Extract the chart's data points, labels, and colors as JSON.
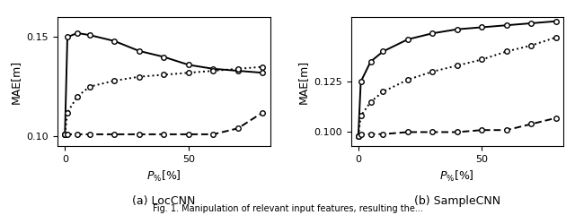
{
  "left": {
    "title": "(a) LocCNN",
    "ylabel": "MAE[m]",
    "xlabel": "$P_{\\%}$[%]",
    "xlim": [
      -3,
      83
    ],
    "ylim": [
      0.095,
      0.16
    ],
    "yticks": [
      0.1,
      0.15
    ],
    "ytick_labels": [
      "0.10",
      "0.15"
    ],
    "xticks": [
      0,
      50
    ],
    "x": [
      0,
      1,
      5,
      10,
      20,
      30,
      40,
      50,
      60,
      70,
      80
    ],
    "solid": [
      0.101,
      0.15,
      0.152,
      0.151,
      0.148,
      0.143,
      0.14,
      0.136,
      0.134,
      0.133,
      0.132
    ],
    "dotted": [
      0.101,
      0.112,
      0.12,
      0.125,
      0.128,
      0.13,
      0.131,
      0.132,
      0.133,
      0.134,
      0.135
    ],
    "dashed": [
      0.101,
      0.101,
      0.101,
      0.101,
      0.101,
      0.101,
      0.101,
      0.101,
      0.101,
      0.104,
      0.112
    ]
  },
  "right": {
    "title": "(b) SampleCNN",
    "ylabel": "MAE[m]",
    "xlabel": "$P_{\\%}$[%]",
    "xlim": [
      -3,
      83
    ],
    "ylim": [
      0.093,
      0.157
    ],
    "yticks": [
      0.1,
      0.125
    ],
    "ytick_labels": [
      "0.100",
      "0.125"
    ],
    "xticks": [
      0,
      50
    ],
    "x": [
      0,
      1,
      5,
      10,
      20,
      30,
      40,
      50,
      60,
      70,
      80
    ],
    "solid": [
      0.098,
      0.125,
      0.135,
      0.14,
      0.146,
      0.149,
      0.151,
      0.152,
      0.153,
      0.154,
      0.155
    ],
    "dotted": [
      0.098,
      0.108,
      0.115,
      0.12,
      0.126,
      0.13,
      0.133,
      0.136,
      0.14,
      0.143,
      0.147
    ],
    "dashed": [
      0.098,
      0.099,
      0.099,
      0.099,
      0.1,
      0.1,
      0.1,
      0.101,
      0.101,
      0.104,
      0.107
    ]
  },
  "marker": "o",
  "markersize": 4,
  "linewidth": 1.4,
  "bg_color": "#ffffff",
  "caption": "Fig. 1. Manipulation of relevant input features, resulting the..."
}
